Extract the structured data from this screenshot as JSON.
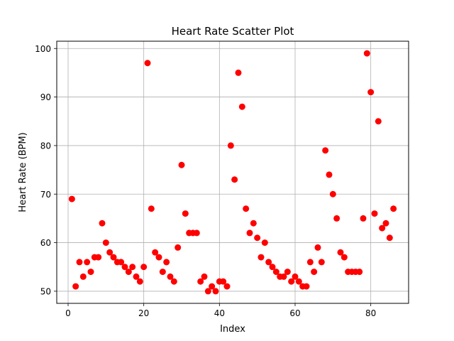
{
  "chart_data": {
    "type": "scatter",
    "title": "Heart Rate Scatter Plot",
    "xlabel": "Index",
    "ylabel": "Heart Rate (BPM)",
    "xlim": [
      -3,
      90
    ],
    "ylim": [
      47.5,
      101.5
    ],
    "xticks": [
      0,
      20,
      40,
      60,
      80
    ],
    "yticks": [
      50,
      60,
      70,
      80,
      90,
      100
    ],
    "grid": true,
    "marker_color": "#ff0000",
    "series": [
      {
        "x": [
          1,
          2,
          3,
          4,
          5,
          6,
          7,
          8,
          9,
          10,
          11,
          12,
          13,
          14,
          15,
          16,
          17,
          18,
          19,
          20,
          21,
          22,
          23,
          24,
          25,
          26,
          27,
          28,
          29,
          30,
          31,
          32,
          33,
          34,
          35,
          36,
          37,
          38,
          39,
          40,
          41,
          42,
          43,
          44,
          45,
          46,
          47,
          48,
          49,
          50,
          51,
          52,
          53,
          54,
          55,
          56,
          57,
          58,
          59,
          60,
          61,
          62,
          63,
          64,
          65,
          66,
          67,
          68,
          69,
          70,
          71,
          72,
          73,
          74,
          75,
          76,
          77,
          78,
          79,
          80,
          81,
          82,
          83,
          84,
          85,
          86
        ],
        "y": [
          69,
          51,
          56,
          53,
          56,
          54,
          57,
          57,
          64,
          60,
          58,
          57,
          56,
          56,
          55,
          54,
          55,
          53,
          52,
          55,
          97,
          67,
          58,
          57,
          54,
          56,
          53,
          52,
          59,
          76,
          66,
          62,
          62,
          62,
          52,
          53,
          50,
          51,
          50,
          52,
          52,
          51,
          80,
          73,
          95,
          88,
          67,
          62,
          64,
          61,
          57,
          60,
          56,
          55,
          54,
          53,
          53,
          54,
          52,
          53,
          52,
          51,
          51,
          56,
          54,
          59,
          56,
          79,
          74,
          70,
          65,
          58,
          57,
          54,
          54,
          54,
          54,
          65,
          99,
          91,
          66,
          85,
          63,
          64,
          61,
          67
        ]
      }
    ]
  }
}
